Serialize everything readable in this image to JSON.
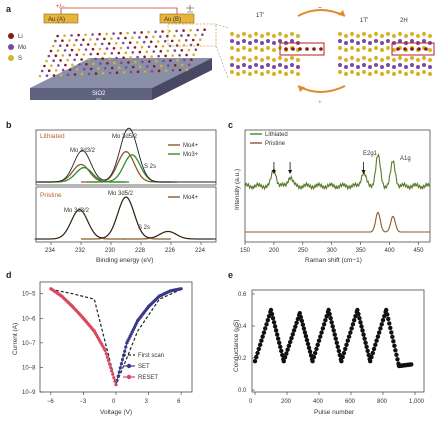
{
  "panels": {
    "a": {
      "letter": "a",
      "legend": [
        "Li",
        "Mo",
        "S"
      ],
      "electrode_left": "Au (A)",
      "electrode_right": "Au (B)",
      "bias": "+/−",
      "substrate_top": "SiO2",
      "substrate_bottom": "Si",
      "phase_left": "1T'",
      "phase_mid": "1T'",
      "phase_right": "2H",
      "arrow_top": "−",
      "arrow_bottom": "+",
      "colors": {
        "li": "#8b1a1a",
        "mo": "#7b4aa0",
        "s": "#d4b429"
      }
    },
    "b": {
      "letter": "b",
      "top_label": "Lithiated",
      "bottom_label": "Pristine",
      "xlabel": "Binding energy (eV)",
      "xticks": [
        "234",
        "232",
        "230",
        "228",
        "226",
        "224"
      ],
      "peaks_top": [
        "Mo 3d3/2",
        "Mo 3d5/2",
        "S 2s"
      ],
      "peaks_bottom": [
        "Mo 3d3/2",
        "Mo 3d5/2",
        "S 2s"
      ],
      "legend_top": [
        "Mo4+",
        "Mo3+"
      ],
      "legend_bottom": [
        "Mo4+"
      ]
    },
    "c": {
      "letter": "c",
      "ylabel": "Intensity (a.u.)",
      "xlabel": "Raman shift (cm−1)",
      "xticks": [
        "150",
        "200",
        "250",
        "300",
        "350",
        "400",
        "450"
      ],
      "legend": [
        "Lithiated",
        "Pristine"
      ],
      "peak_labels": [
        "E2g1",
        "A1g"
      ]
    },
    "d": {
      "letter": "d",
      "ylabel": "Current (A)",
      "xlabel": "Voltage (V)",
      "yticks": [
        "10−5",
        "10−6",
        "10−7",
        "10−8",
        "10−9"
      ],
      "xticks": [
        "−6",
        "−3",
        "0",
        "3",
        "6"
      ],
      "legend": [
        "First scan",
        "SET",
        "RESET"
      ]
    },
    "e": {
      "letter": "e",
      "ylabel": "Conductance (μS)",
      "xlabel": "Pulse number",
      "yticks": [
        "0.0",
        "0.2",
        "0.4",
        "0.6"
      ],
      "xticks": [
        "0",
        "200",
        "400",
        "600",
        "800",
        "1,000"
      ]
    }
  },
  "chart_data": [
    {
      "type": "line",
      "panel": "b-top",
      "xlabel": "Binding energy (eV)",
      "xlim": [
        235,
        223
      ],
      "series": [
        {
          "name": "Mo4+",
          "x": [
            232.0,
            229.0
          ],
          "values": [
            0.55,
            0.95
          ]
        },
        {
          "name": "Mo3+",
          "x": [
            231.8,
            228.6
          ],
          "values": [
            0.45,
            0.85
          ]
        }
      ]
    },
    {
      "type": "line",
      "panel": "b-bottom",
      "xlabel": "Binding energy (eV)",
      "xlim": [
        235,
        223
      ],
      "series": [
        {
          "name": "Mo4+",
          "x": [
            232.1,
            229.0,
            226.2
          ],
          "values": [
            0.7,
            1.0,
            0.18
          ]
        }
      ]
    },
    {
      "type": "line",
      "panel": "c",
      "xlabel": "Raman shift (cm−1)",
      "ylabel": "Intensity (a.u.)",
      "xlim": [
        150,
        470
      ],
      "series": [
        {
          "name": "Lithiated",
          "x": [
            200,
            228,
            355,
            380,
            406
          ],
          "values": [
            0.55,
            0.3,
            0.45,
            1.0,
            0.8
          ]
        },
        {
          "name": "Pristine",
          "x": [
            380,
            406
          ],
          "values": [
            0.75,
            0.6
          ]
        }
      ]
    },
    {
      "type": "line",
      "panel": "d",
      "xlabel": "Voltage (V)",
      "ylabel": "Current (A)",
      "xlim": [
        -7,
        7
      ],
      "ylim": [
        1e-09,
        3e-05
      ],
      "series": [
        {
          "name": "First scan",
          "x": [
            -6,
            -4,
            -2,
            0,
            2,
            4,
            6
          ],
          "values": [
            1.5e-05,
            1e-05,
            6e-06,
            2e-09,
            3e-07,
            6e-06,
            1.5e-05
          ]
        },
        {
          "name": "SET",
          "x": [
            0,
            1,
            2,
            3,
            4,
            5,
            6
          ],
          "values": [
            2e-09,
            1e-07,
            8e-07,
            3e-06,
            8e-06,
            1.3e-05,
            1.6e-05
          ]
        },
        {
          "name": "RESET",
          "x": [
            -6,
            -5,
            -4,
            -3,
            -2,
            -1,
            0
          ],
          "values": [
            1.6e-05,
            8e-06,
            3e-06,
            1e-06,
            3e-07,
            5e-08,
            2e-09
          ]
        }
      ]
    },
    {
      "type": "scatter",
      "panel": "e",
      "xlabel": "Pulse number",
      "ylabel": "Conductance (μS)",
      "xlim": [
        0,
        1000
      ],
      "ylim": [
        0.0,
        0.6
      ],
      "series": [
        {
          "name": "conductance",
          "x": [
            0,
            100,
            180,
            280,
            360,
            460,
            540,
            640,
            720,
            820,
            900,
            980
          ],
          "values": [
            0.18,
            0.5,
            0.18,
            0.48,
            0.18,
            0.5,
            0.18,
            0.5,
            0.18,
            0.5,
            0.15,
            0.16
          ]
        }
      ]
    }
  ]
}
